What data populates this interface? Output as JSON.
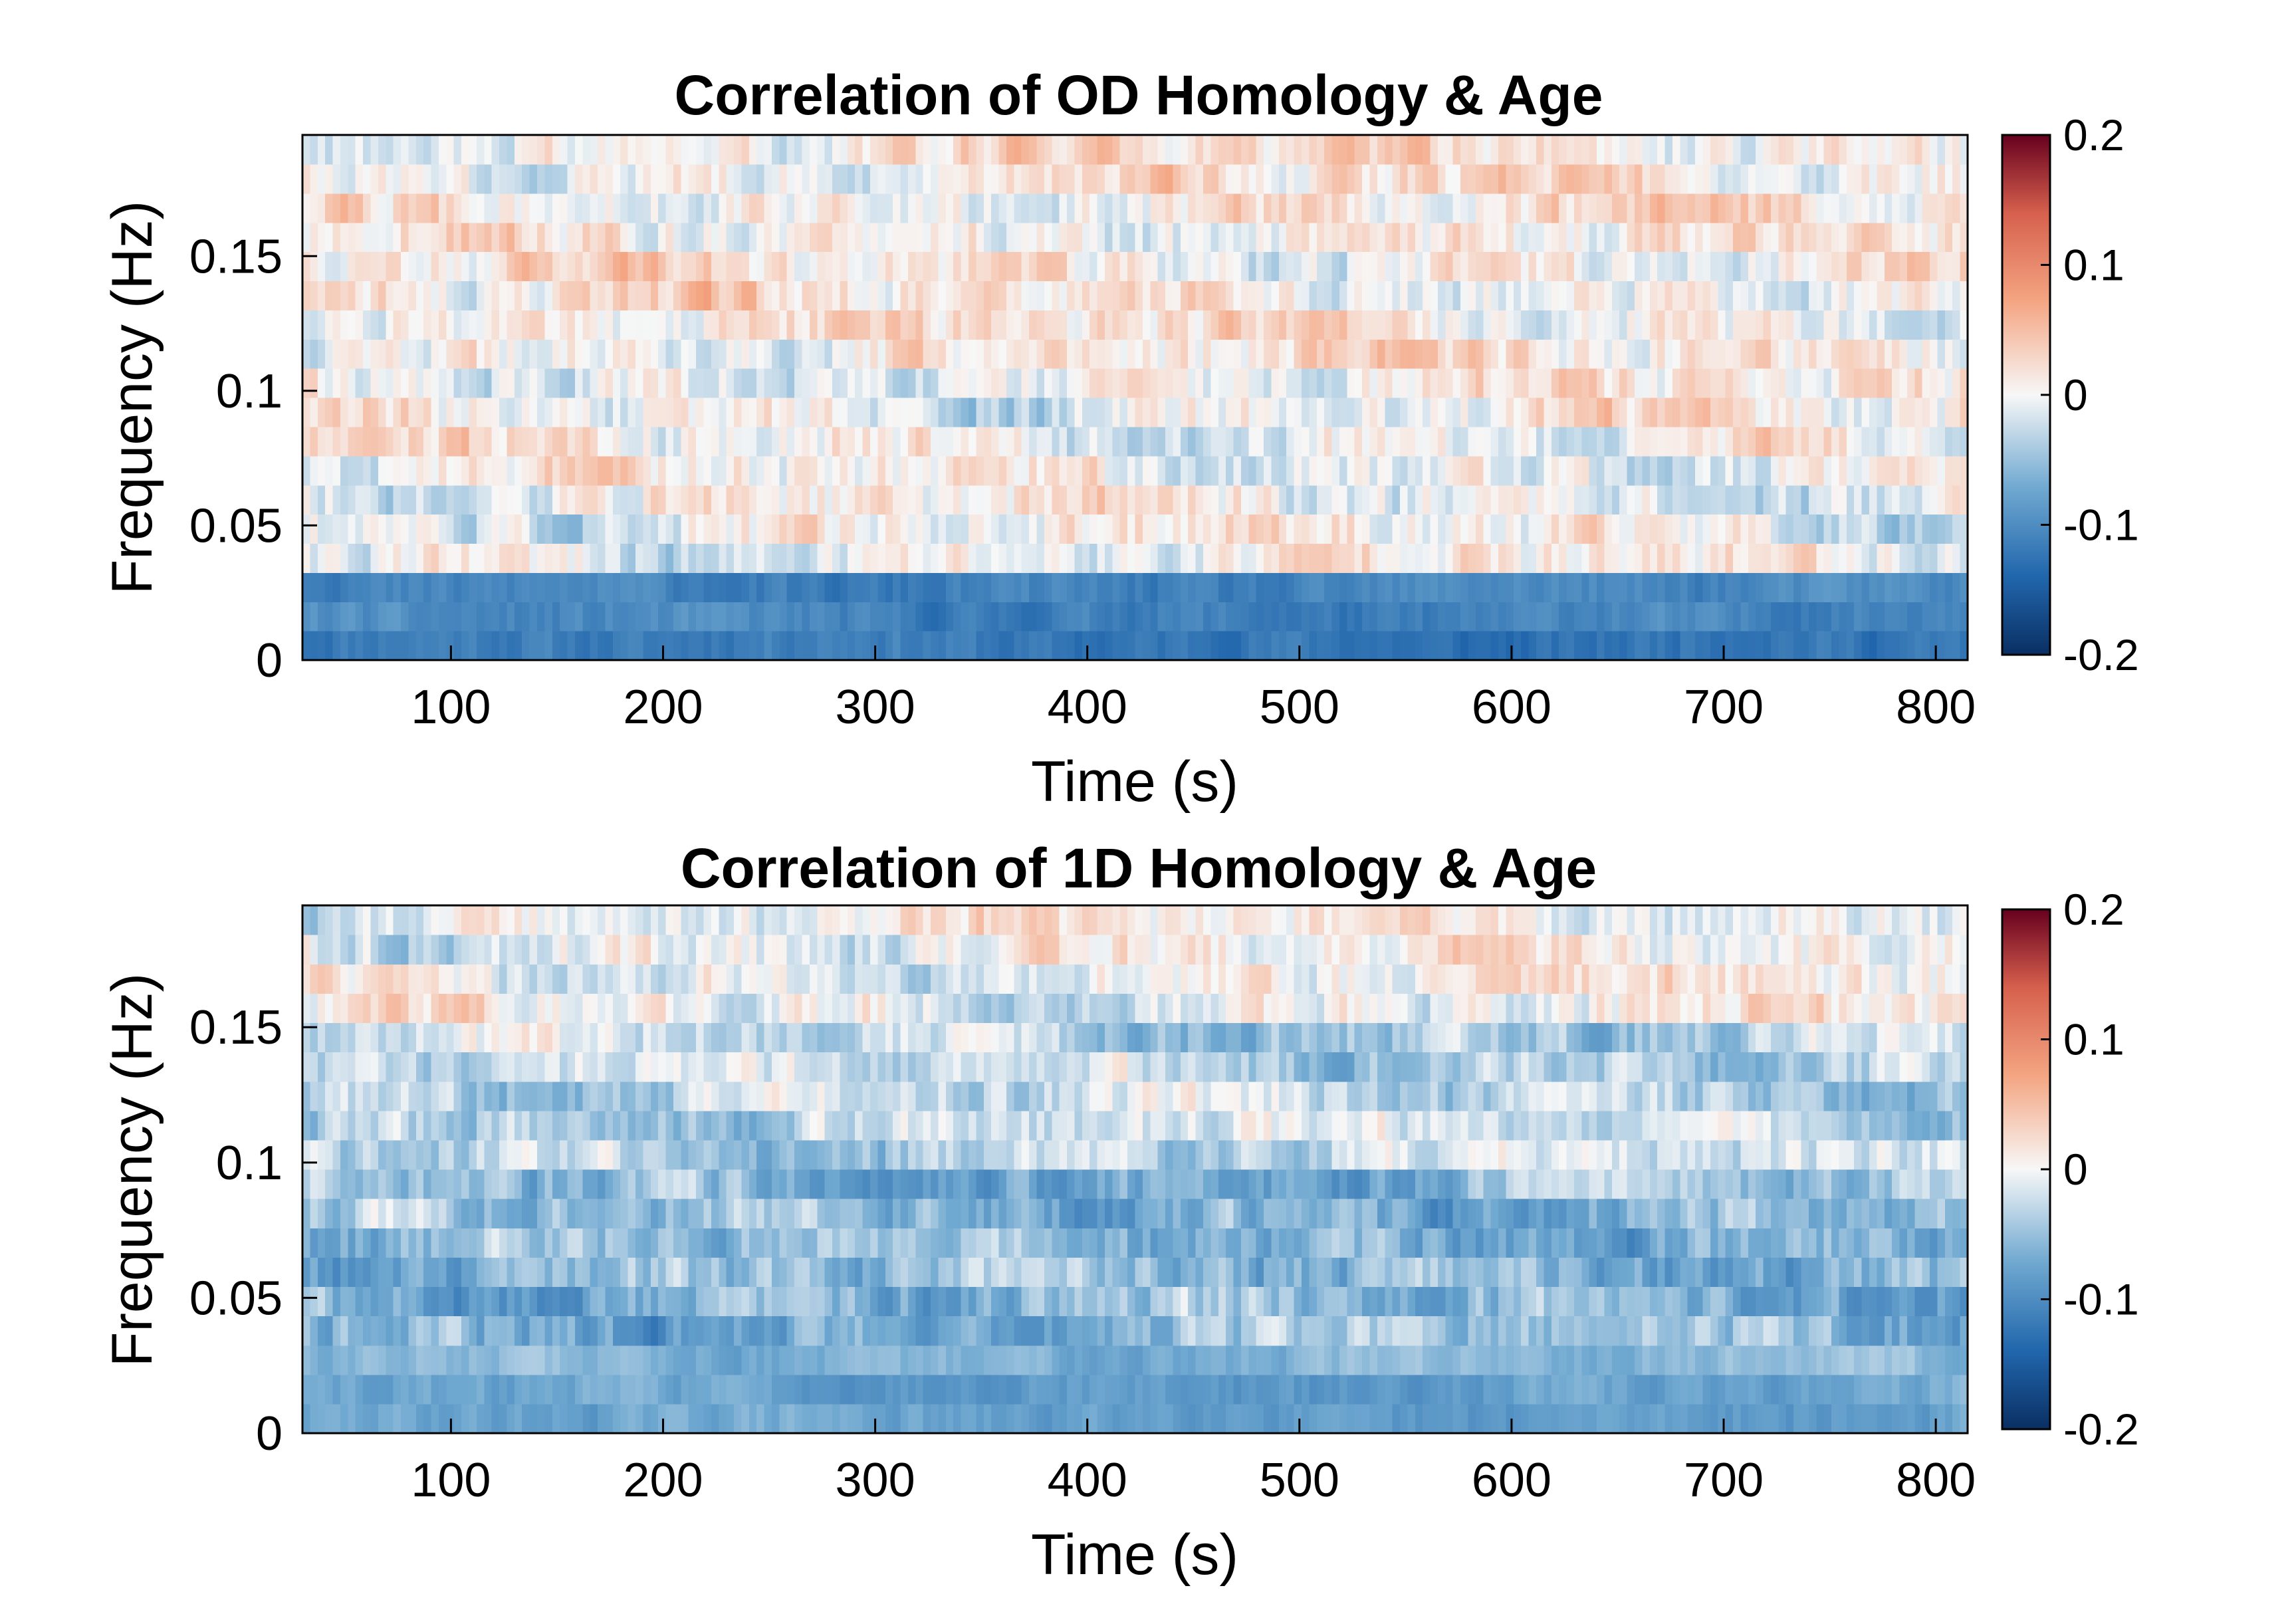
{
  "chart_data": [
    {
      "type": "heatmap",
      "title": "Correlation of OD Homology  & Age",
      "xlabel": "Time (s)",
      "ylabel": "Frequency (Hz)",
      "xlim": [
        30,
        815
      ],
      "ylim": [
        0,
        0.195
      ],
      "xticks": [
        100,
        200,
        300,
        400,
        500,
        600,
        700,
        800
      ],
      "xtick_labels": [
        "100",
        "200",
        "300",
        "400",
        "500",
        "600",
        "700",
        "800"
      ],
      "yticks": [
        0,
        0.05,
        0.1,
        0.15
      ],
      "ytick_labels": [
        "0",
        "0.05",
        "0.1",
        "0.15"
      ],
      "colorbar": {
        "colormap": "red-white-blue (diverging)",
        "range": [
          -0.2,
          0.2
        ],
        "ticks": [
          -0.2,
          -0.1,
          0,
          0.1,
          0.2
        ],
        "tick_labels": [
          "-0.2",
          "-0.1",
          "0",
          "0.1",
          "0.2"
        ],
        "colors": {
          "min": "#0a2f63",
          "mid": "#f7f7f7",
          "max": "#67001f"
        }
      },
      "frequency_band_pattern": [
        {
          "band": [
            0,
            0.011
          ],
          "mean": -0.12,
          "character": "persistent negative band"
        },
        {
          "band": [
            0.011,
            0.032
          ],
          "mean": -0.11,
          "character": "persistent negative band"
        },
        {
          "band": [
            0.032,
            0.043
          ],
          "mean": 0.0,
          "character": "mixed, near zero"
        },
        {
          "band": [
            0.043,
            0.075
          ],
          "mean": 0.0,
          "character": "mixed positive and negative patches"
        },
        {
          "band": [
            0.075,
            0.11
          ],
          "mean": 0.0,
          "character": "mixed, scattered extremes"
        },
        {
          "band": [
            0.11,
            0.195
          ],
          "mean": 0.01,
          "character": "fine alternating stripes, near zero"
        }
      ]
    },
    {
      "type": "heatmap",
      "title": "Correlation of 1D Homology  & Age",
      "xlabel": "Time (s)",
      "ylabel": "Frequency (Hz)",
      "xlim": [
        30,
        815
      ],
      "ylim": [
        0,
        0.195
      ],
      "xticks": [
        100,
        200,
        300,
        400,
        500,
        600,
        700,
        800
      ],
      "xtick_labels": [
        "100",
        "200",
        "300",
        "400",
        "500",
        "600",
        "700",
        "800"
      ],
      "yticks": [
        0,
        0.05,
        0.1,
        0.15
      ],
      "ytick_labels": [
        "0",
        "0.05",
        "0.1",
        "0.15"
      ],
      "colorbar": {
        "colormap": "red-white-blue (diverging)",
        "range": [
          -0.2,
          0.2
        ],
        "ticks": [
          -0.2,
          -0.1,
          0,
          0.1,
          0.2
        ],
        "tick_labels": [
          "-0.2",
          "-0.1",
          "0",
          "0.1",
          "0.2"
        ],
        "colors": {
          "min": "#0a2f63",
          "mid": "#f7f7f7",
          "max": "#67001f"
        }
      },
      "frequency_band_pattern": [
        {
          "band": [
            0,
            0.022
          ],
          "mean": -0.08,
          "character": "persistent negative band"
        },
        {
          "band": [
            0.022,
            0.1
          ],
          "mean": -0.06,
          "character": "predominantly negative, mottled"
        },
        {
          "band": [
            0.1,
            0.15
          ],
          "mean": -0.03,
          "character": "mixed, positive patch near 500 s"
        },
        {
          "band": [
            0.15,
            0.195
          ],
          "mean": 0.0,
          "character": "mixed, positive patch near 410 s"
        }
      ]
    }
  ]
}
